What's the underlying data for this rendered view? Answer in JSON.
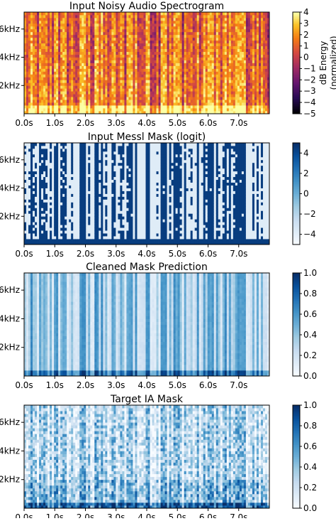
{
  "chart_data": [
    {
      "type": "heatmap",
      "title": "Input Noisy Audio Spectrogram",
      "x_ticks": [
        "0.0s",
        "1.0s",
        "2.0s",
        "3.0s",
        "4.0s",
        "5.0s",
        "6.0s",
        "7.0s"
      ],
      "x_tick_values": [
        0,
        1,
        2,
        3,
        4,
        5,
        6,
        7
      ],
      "xlim": [
        0,
        8
      ],
      "y_ticks": [
        "2kHz",
        "4kHz",
        "6kHz"
      ],
      "y_tick_values": [
        2000,
        4000,
        6000
      ],
      "ylim": [
        0,
        7200
      ],
      "colormap": "inferno",
      "colorbar": {
        "label": "dB Energy\n(normalized)",
        "range": [
          -5,
          4
        ],
        "ticks": [
          "4",
          "3",
          "2",
          "1",
          "0",
          "−1",
          "−2",
          "−3",
          "−4",
          "−5"
        ],
        "tick_values": [
          4,
          3,
          2,
          1,
          0,
          -1,
          -2,
          -3,
          -4,
          -5
        ]
      }
    },
    {
      "type": "heatmap",
      "title": "Input Messl Mask (logit)",
      "x_ticks": [
        "0.0s",
        "1.0s",
        "2.0s",
        "3.0s",
        "4.0s",
        "5.0s",
        "6.0s",
        "7.0s"
      ],
      "x_tick_values": [
        0,
        1,
        2,
        3,
        4,
        5,
        6,
        7
      ],
      "xlim": [
        0,
        8
      ],
      "y_ticks": [
        "2kHz",
        "4kHz",
        "6kHz"
      ],
      "y_tick_values": [
        2000,
        4000,
        6000
      ],
      "ylim": [
        0,
        7200
      ],
      "colormap": "Blues",
      "colorbar": {
        "range": [
          -5,
          5
        ],
        "ticks": [
          "4",
          "2",
          "0",
          "−2",
          "−4"
        ],
        "tick_values": [
          4,
          2,
          0,
          -2,
          -4
        ]
      }
    },
    {
      "type": "heatmap",
      "title": "Cleaned Mask Prediction",
      "x_ticks": [
        "0.0s",
        "1.0s",
        "2.0s",
        "3.0s",
        "4.0s",
        "5.0s",
        "6.0s",
        "7.0s"
      ],
      "x_tick_values": [
        0,
        1,
        2,
        3,
        4,
        5,
        6,
        7
      ],
      "xlim": [
        0,
        8
      ],
      "y_ticks": [
        "2kHz",
        "4kHz",
        "6kHz"
      ],
      "y_tick_values": [
        2000,
        4000,
        6000
      ],
      "ylim": [
        0,
        7200
      ],
      "colormap": "Blues",
      "colorbar": {
        "range": [
          0,
          1
        ],
        "ticks": [
          "1.0",
          "0.8",
          "0.6",
          "0.4",
          "0.2",
          "0.0"
        ],
        "tick_values": [
          1.0,
          0.8,
          0.6,
          0.4,
          0.2,
          0.0
        ]
      }
    },
    {
      "type": "heatmap",
      "title": "Target IA Mask",
      "x_ticks": [
        "0.0s",
        "1.0s",
        "2.0s",
        "3.0s",
        "4.0s",
        "5.0s",
        "6.0s",
        "7.0s"
      ],
      "x_tick_values": [
        0,
        1,
        2,
        3,
        4,
        5,
        6,
        7
      ],
      "xlim": [
        0,
        8
      ],
      "y_ticks": [
        "2kHz",
        "4kHz",
        "6kHz"
      ],
      "y_tick_values": [
        2000,
        4000,
        6000
      ],
      "ylim": [
        0,
        7200
      ],
      "colormap": "Blues",
      "colorbar": {
        "range": [
          0,
          1
        ],
        "ticks": [
          "1.0",
          "0.8",
          "0.6",
          "0.4",
          "0.2",
          "0.0"
        ],
        "tick_values": [
          1.0,
          0.8,
          0.6,
          0.4,
          0.2,
          0.0
        ]
      }
    }
  ]
}
